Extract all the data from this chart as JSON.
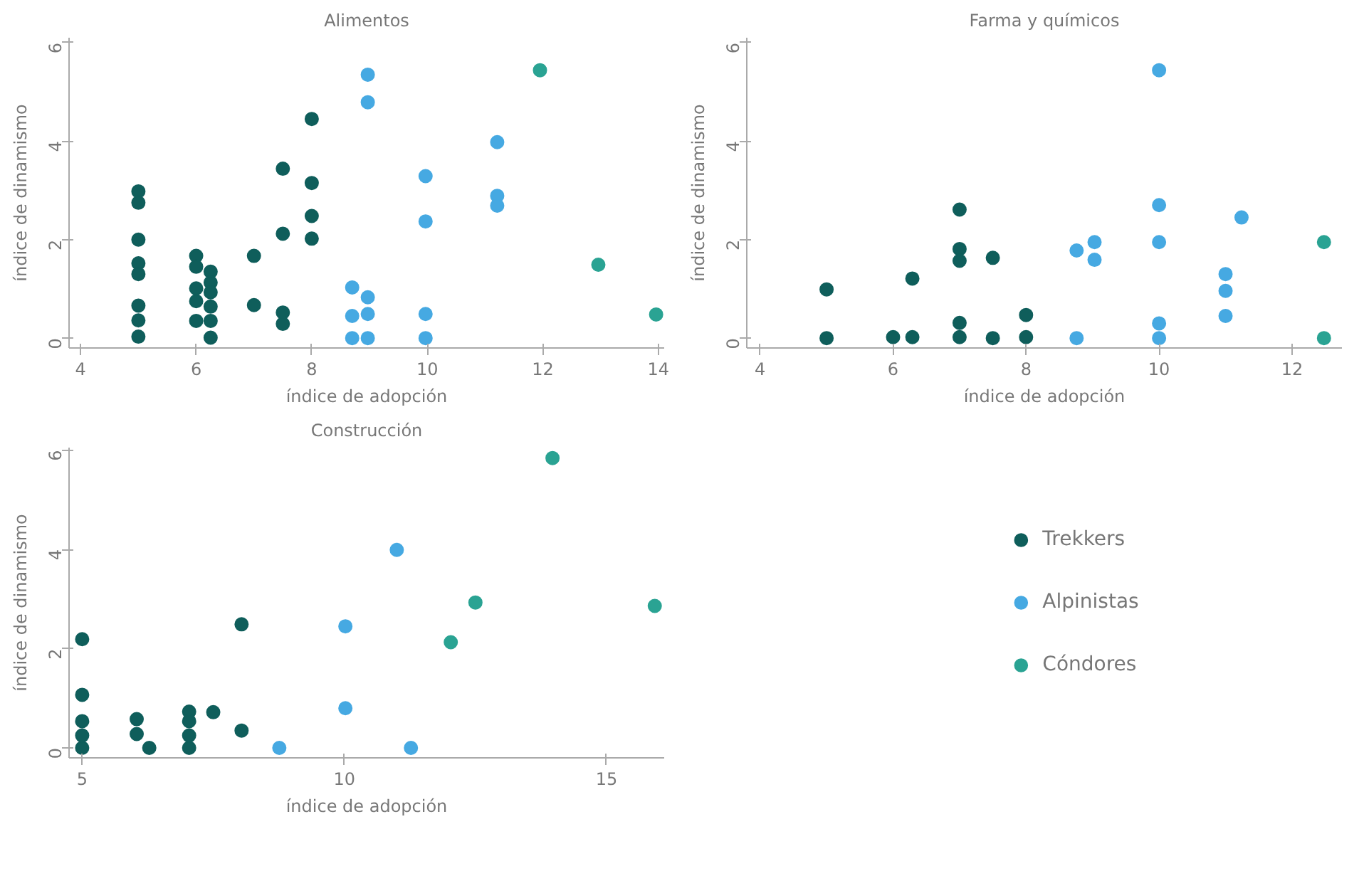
{
  "chart_data": [
    {
      "type": "scatter",
      "title": "Alimentos",
      "xlabel": "índice de adopción",
      "ylabel": "índice de dinamismo",
      "xlim": [
        3.8,
        14.1
      ],
      "ylim": [
        -0.2,
        6.1
      ],
      "xticks": [
        4,
        6,
        8,
        10,
        12,
        14
      ],
      "yticks": [
        0,
        2,
        4,
        6
      ],
      "grid": false,
      "marker": "circle",
      "series": [
        {
          "color": "#0f5e5b",
          "x": [
            5,
            5,
            5,
            5,
            5,
            5,
            5,
            5,
            6,
            6,
            6,
            6,
            6,
            6.25,
            6.25,
            6.25,
            6.25,
            6.25,
            6.25,
            7,
            7,
            7.5,
            7.5,
            7.5,
            7.5,
            8,
            8,
            8,
            8
          ],
          "values": [
            2.98,
            2.75,
            2.0,
            1.52,
            1.3,
            0.66,
            0.36,
            0.03,
            1.67,
            1.45,
            1.01,
            0.75,
            0.35,
            1.35,
            1.13,
            0.93,
            0.64,
            0.35,
            0.01,
            1.67,
            0.67,
            3.44,
            2.12,
            0.52,
            0.29,
            4.45,
            3.15,
            2.48,
            2.02
          ]
        },
        {
          "color": "#46a9e2",
          "x": [
            8.7,
            8.7,
            8.7,
            8.97,
            8.97,
            8.97,
            8.97,
            8.97,
            9.97,
            9.97,
            9.97,
            9.97,
            11.21,
            11.21,
            11.21
          ],
          "values": [
            1.03,
            0.45,
            0.0,
            5.35,
            4.79,
            0.83,
            0.49,
            0.0,
            3.29,
            2.37,
            0.49,
            0.0,
            3.98,
            2.89,
            2.69
          ]
        },
        {
          "color": "#2aa393",
          "x": [
            11.95,
            12.96,
            13.96
          ],
          "values": [
            5.44,
            1.49,
            0.48
          ]
        }
      ]
    },
    {
      "type": "scatter",
      "title": "Farma y químicos",
      "xlabel": "índice de adopción",
      "ylabel": "índice de dinamismo",
      "xlim": [
        3.8,
        12.75
      ],
      "ylim": [
        -0.2,
        6.1
      ],
      "xticks": [
        4,
        6,
        8,
        10,
        12
      ],
      "yticks": [
        0,
        2,
        4,
        6
      ],
      "grid": false,
      "marker": "circle",
      "series": [
        {
          "color": "#0f5e5b",
          "x": [
            5,
            5,
            6,
            6.29,
            6.29,
            7,
            7,
            7,
            7,
            7,
            7.5,
            7.5,
            8,
            8
          ],
          "values": [
            0.99,
            0.0,
            0.02,
            1.21,
            0.02,
            2.61,
            1.81,
            1.57,
            0.31,
            0.02,
            1.63,
            0.0,
            0.47,
            0.02
          ]
        },
        {
          "color": "#46a9e2",
          "x": [
            8.76,
            8.76,
            9.03,
            9.03,
            10,
            10,
            10,
            10,
            10,
            11,
            11,
            11,
            11.24
          ],
          "values": [
            1.78,
            0.0,
            1.95,
            1.59,
            5.44,
            2.7,
            1.95,
            0.3,
            0.0,
            1.3,
            0.96,
            0.45,
            2.45
          ]
        },
        {
          "color": "#2aa393",
          "x": [
            12.48,
            12.48
          ],
          "values": [
            1.95,
            0.0
          ]
        }
      ]
    },
    {
      "type": "scatter",
      "title": "Construcción",
      "xlabel": "índice de adopción",
      "ylabel": "índice de dinamismo",
      "xlim": [
        4.75,
        16.1
      ],
      "ylim": [
        -0.2,
        6.05
      ],
      "xticks": [
        5,
        10,
        15
      ],
      "yticks": [
        0,
        2,
        4,
        6
      ],
      "grid": false,
      "marker": "circle",
      "legend": "right",
      "series": [
        {
          "name": "Trekkers",
          "color": "#0f5e5b",
          "x": [
            5,
            5,
            5,
            5,
            5,
            6.04,
            6.04,
            6.28,
            7.04,
            7.04,
            7.04,
            7.04,
            7.5,
            8.04,
            8.04
          ],
          "values": [
            2.19,
            1.07,
            0.54,
            0.25,
            0.0,
            0.58,
            0.28,
            0.0,
            0.73,
            0.54,
            0.25,
            0.0,
            0.72,
            2.49,
            0.35
          ]
        },
        {
          "name": "Alpinistas",
          "color": "#46a9e2",
          "x": [
            8.76,
            10.02,
            10.02,
            11.0,
            11.27
          ],
          "values": [
            0.0,
            2.45,
            0.8,
            3.99,
            0.0
          ]
        },
        {
          "name": "Cóndores",
          "color": "#2aa393",
          "x": [
            12.03,
            12.5,
            13.97,
            15.92
          ],
          "values": [
            2.13,
            2.93,
            5.84,
            2.86
          ]
        }
      ]
    }
  ]
}
